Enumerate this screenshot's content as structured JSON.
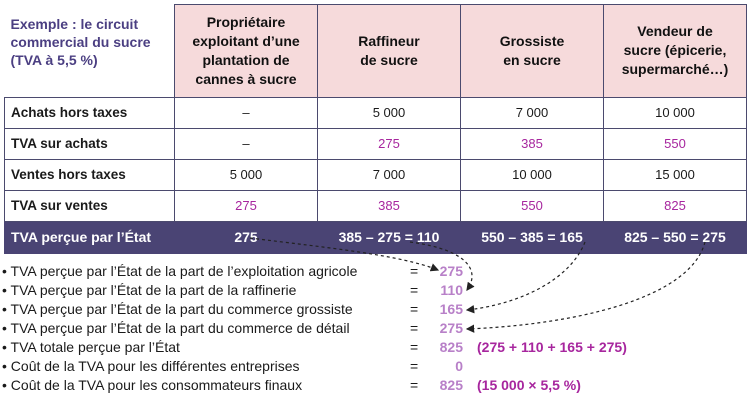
{
  "table": {
    "corner_lines": [
      "Exemple : le circuit",
      "commercial du sucre",
      "(TVA à 5,5 %)"
    ],
    "columns": [
      {
        "lines": [
          "Propriétaire",
          "exploitant d’une",
          "plantation de",
          "cannes à sucre"
        ]
      },
      {
        "lines": [
          "Raffineur",
          "de sucre"
        ]
      },
      {
        "lines": [
          "Grossiste",
          "en sucre"
        ]
      },
      {
        "lines": [
          "Vendeur de",
          "sucre (épicerie,",
          "supermarché…)"
        ]
      }
    ],
    "rows": [
      {
        "label": "Achats hors taxes",
        "values": [
          "–",
          "5 000",
          "7 000",
          "10 000"
        ]
      },
      {
        "label": "TVA sur achats",
        "values": [
          "–",
          "275",
          "385",
          "550"
        ]
      },
      {
        "label": "Ventes hors taxes",
        "values": [
          "5 000",
          "7 000",
          "10 000",
          "15 000"
        ]
      },
      {
        "label": "TVA sur ventes",
        "values": [
          "275",
          "385",
          "550",
          "825"
        ]
      }
    ],
    "total_row": {
      "label": "TVA perçue par l’État",
      "values": [
        "275",
        "385 – 275 = 110",
        "550 – 385 = 165",
        "825 – 550 = 275"
      ]
    }
  },
  "summary": [
    {
      "text": "• TVA perçue par l’État de la part de l’exploitation agricole",
      "eq": "=",
      "value": "275",
      "note": ""
    },
    {
      "text": "• TVA perçue par l’État de la part de la raffinerie",
      "eq": "=",
      "value": "110",
      "note": ""
    },
    {
      "text": "• TVA perçue par l’État de la part du commerce grossiste",
      "eq": "=",
      "value": "165",
      "note": ""
    },
    {
      "text": "• TVA perçue par l’État de la part du commerce de détail",
      "eq": "=",
      "value": "275",
      "note": ""
    },
    {
      "text": "• TVA totale perçue par l’État",
      "eq": "=",
      "value": "825",
      "note": "(275 + 110 + 165 + 275)"
    },
    {
      "text": "• Coût de la TVA pour les différentes entreprises",
      "eq": "=",
      "value": "0",
      "note": ""
    },
    {
      "text": "• Coût de la TVA pour les consommateurs finaux",
      "eq": "=",
      "value": "825",
      "note": "(15 000 × 5,5 %)"
    }
  ],
  "colors": {
    "accent_purple": "#4a4474",
    "header_pink": "#f6dadb",
    "value_magenta": "#a7269e",
    "value_light": "#b880c8"
  }
}
